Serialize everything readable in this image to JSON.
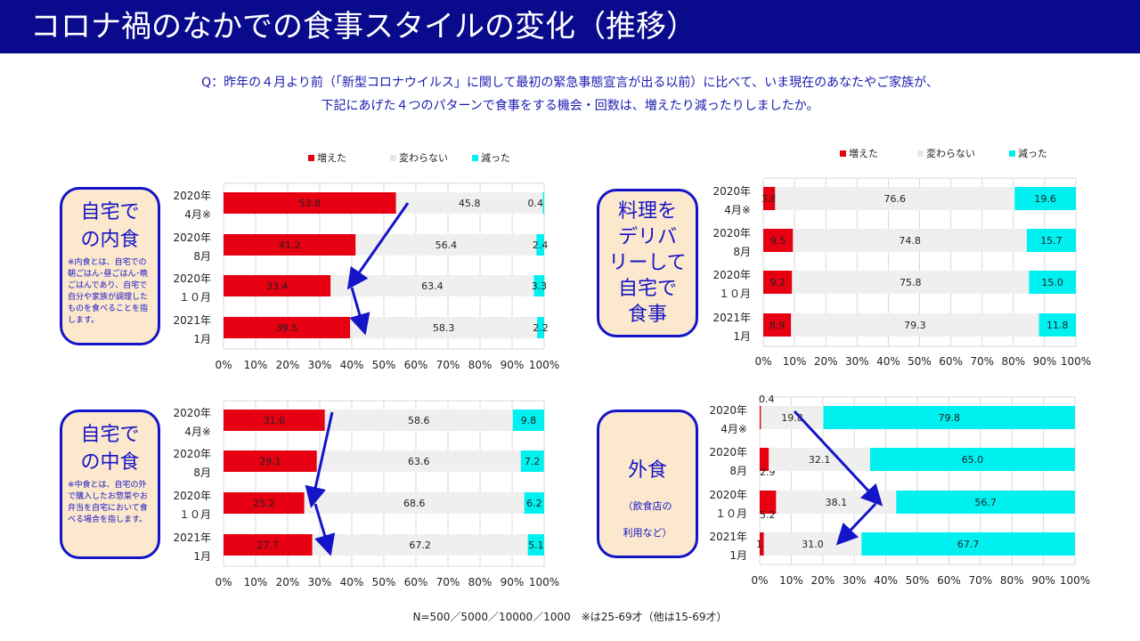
{
  "header": {
    "title": "コロナ禍のなかでの食事スタイルの変化（推移）"
  },
  "question": {
    "line1": "Q：昨年の４月より前（「新型コロナウイルス」に関して最初の緊急事態宣言が出る以前）に比べて、いま現在のあなたやご家族が、",
    "line2": "下記にあげた４つのパターンで食事をする機会・回数は、増えたり減ったりしましたか。"
  },
  "callouts": {
    "uchi": {
      "title": "自宅での内食",
      "title_l1": "自宅で",
      "title_l2": "の内食",
      "note": "※内食とは、自宅での朝ごはん･昼ごはん･晩ごはんであり、自宅で自分や家族が調理したものを食べることを指します。"
    },
    "naka": {
      "title": "自宅での中食",
      "title_l1": "自宅で",
      "title_l2": "の中食",
      "note": "※中食とは、自宅の外で購入したお惣菜やお弁当を自宅において食べる場合を指します。"
    },
    "deli": {
      "l1": "料理を",
      "l2": "デリバ",
      "l3": "リーして",
      "l4": "自宅で",
      "l5": "食事"
    },
    "gai": {
      "title": "外食",
      "note": "（飲食店の利用など）",
      "note_l1": "（飲食店の",
      "note_l2": "利用など）"
    }
  },
  "footnote": "N=500／5000／10000／1000　※は25-69才（他は15-69才）",
  "colors": {
    "increase": "#e60012",
    "same": "#efefef",
    "decrease": "#00f0f0",
    "accent": "#1414c8",
    "title_bg": "#0a0a8c"
  },
  "chart_data": [
    {
      "type": "bar",
      "orientation": "horizontal-stacked-100",
      "categories": [
        "2020年\n4月※",
        "2020年\n8月",
        "2020年\n１０月",
        "2021年\n1月"
      ],
      "series": [
        {
          "name": "増えた",
          "values": [
            53.8,
            41.2,
            33.4,
            39.5
          ]
        },
        {
          "name": "変わらない",
          "values": [
            45.8,
            56.4,
            63.4,
            58.3
          ]
        },
        {
          "name": "減った",
          "values": [
            0.4,
            2.4,
            3.3,
            2.2
          ]
        }
      ],
      "xlim": [
        0,
        100
      ],
      "xticks": [
        "0%",
        "10%",
        "20%",
        "30%",
        "40%",
        "50%",
        "60%",
        "70%",
        "80%",
        "90%",
        "100%"
      ],
      "legend": "top",
      "grid": true
    },
    {
      "type": "bar",
      "orientation": "horizontal-stacked-100",
      "categories": [
        "2020年\n4月※",
        "2020年\n8月",
        "2020年\n１０月",
        "2021年\n1月"
      ],
      "series": [
        {
          "name": "増えた",
          "values": [
            3.8,
            9.5,
            9.2,
            8.9
          ]
        },
        {
          "name": "変わらない",
          "values": [
            76.6,
            74.8,
            75.8,
            79.3
          ]
        },
        {
          "name": "減った",
          "values": [
            19.6,
            15.7,
            15.0,
            11.8
          ]
        }
      ],
      "xlim": [
        0,
        100
      ],
      "xticks": [
        "0%",
        "10%",
        "20%",
        "30%",
        "40%",
        "50%",
        "60%",
        "70%",
        "80%",
        "90%",
        "100%"
      ],
      "legend": "top",
      "grid": true
    },
    {
      "type": "bar",
      "orientation": "horizontal-stacked-100",
      "categories": [
        "2020年\n4月※",
        "2020年\n8月",
        "2020年\n１０月",
        "2021年\n1月"
      ],
      "series": [
        {
          "name": "増えた",
          "values": [
            31.6,
            29.1,
            25.2,
            27.7
          ]
        },
        {
          "name": "変わらない",
          "values": [
            58.6,
            63.6,
            68.6,
            67.2
          ]
        },
        {
          "name": "減った",
          "values": [
            9.8,
            7.2,
            6.2,
            5.1
          ]
        }
      ],
      "xlim": [
        0,
        100
      ],
      "xticks": [
        "0%",
        "10%",
        "20%",
        "30%",
        "40%",
        "50%",
        "60%",
        "70%",
        "80%",
        "90%",
        "100%"
      ],
      "grid": true
    },
    {
      "type": "bar",
      "orientation": "horizontal-stacked-100",
      "categories": [
        "2020年\n4月※",
        "2020年\n8月",
        "2020年\n１０月",
        "2021年\n1月"
      ],
      "series": [
        {
          "name": "増えた",
          "values": [
            0.4,
            2.9,
            5.2,
            1.3
          ]
        },
        {
          "name": "変わらない",
          "values": [
            19.8,
            32.1,
            38.1,
            31.0
          ]
        },
        {
          "name": "減った",
          "values": [
            79.8,
            65.0,
            56.7,
            67.7
          ]
        }
      ],
      "xlim": [
        0,
        100
      ],
      "xticks": [
        "0%",
        "10%",
        "20%",
        "30%",
        "40%",
        "50%",
        "60%",
        "70%",
        "80%",
        "90%",
        "100%"
      ],
      "grid": true
    }
  ]
}
